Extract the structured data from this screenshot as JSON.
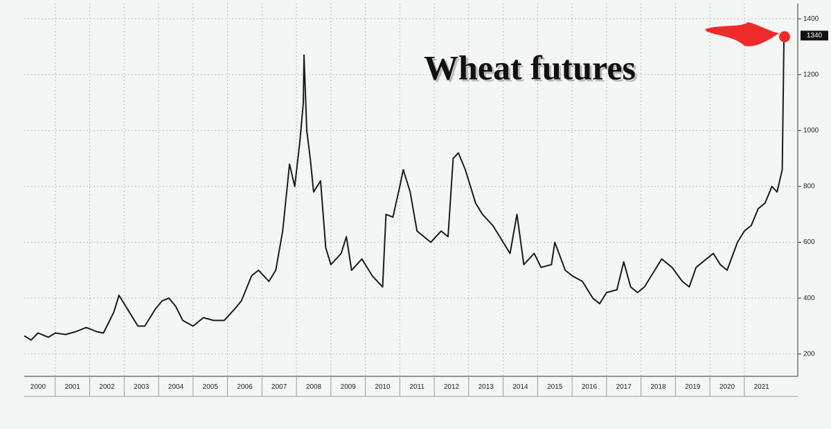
{
  "chart_data": {
    "type": "line",
    "title": "Wheat futures",
    "color": "#1a1a1a",
    "x": [
      2000.1,
      2000.3,
      2000.5,
      2000.8,
      2001.0,
      2001.3,
      2001.6,
      2001.9,
      2002.2,
      2002.4,
      2002.7,
      2002.85,
      2003.1,
      2003.4,
      2003.6,
      2003.9,
      2004.1,
      2004.3,
      2004.5,
      2004.7,
      2005.0,
      2005.3,
      2005.6,
      2005.9,
      2006.2,
      2006.4,
      2006.7,
      2006.9,
      2007.2,
      2007.4,
      2007.6,
      2007.8,
      2007.95,
      2008.1,
      2008.2,
      2008.22,
      2008.3,
      2008.4,
      2008.5,
      2008.7,
      2008.85,
      2009.0,
      2009.3,
      2009.45,
      2009.6,
      2009.9,
      2010.2,
      2010.5,
      2010.6,
      2010.8,
      2011.0,
      2011.1,
      2011.3,
      2011.5,
      2011.7,
      2011.9,
      2012.2,
      2012.4,
      2012.55,
      2012.7,
      2012.9,
      2013.2,
      2013.4,
      2013.7,
      2013.9,
      2014.2,
      2014.4,
      2014.6,
      2014.9,
      2015.1,
      2015.4,
      2015.5,
      2015.8,
      2016.0,
      2016.3,
      2016.6,
      2016.8,
      2017.0,
      2017.3,
      2017.5,
      2017.7,
      2017.9,
      2018.1,
      2018.4,
      2018.6,
      2018.9,
      2019.2,
      2019.4,
      2019.6,
      2019.9,
      2020.1,
      2020.3,
      2020.5,
      2020.8,
      2021.0,
      2021.2,
      2021.4,
      2021.6,
      2021.8,
      2021.95,
      2022.1,
      2022.15
    ],
    "values": [
      265,
      250,
      275,
      260,
      275,
      270,
      280,
      295,
      280,
      275,
      350,
      410,
      360,
      300,
      300,
      360,
      390,
      400,
      370,
      320,
      300,
      330,
      320,
      320,
      360,
      390,
      480,
      500,
      460,
      500,
      640,
      880,
      800,
      960,
      1100,
      1270,
      1000,
      900,
      780,
      820,
      580,
      520,
      560,
      620,
      500,
      540,
      480,
      440,
      700,
      690,
      800,
      860,
      780,
      640,
      620,
      600,
      640,
      620,
      900,
      920,
      860,
      740,
      700,
      660,
      620,
      560,
      700,
      520,
      560,
      510,
      520,
      600,
      500,
      480,
      460,
      400,
      380,
      420,
      430,
      530,
      440,
      420,
      440,
      500,
      540,
      510,
      460,
      440,
      510,
      540,
      560,
      520,
      500,
      600,
      640,
      660,
      720,
      740,
      800,
      780,
      860,
      1340
    ],
    "xlim": [
      2000.1,
      2022.55
    ],
    "xticks": [
      2000,
      2001,
      2002,
      2003,
      2004,
      2005,
      2006,
      2007,
      2008,
      2009,
      2010,
      2011,
      2012,
      2013,
      2014,
      2015,
      2016,
      2017,
      2018,
      2019,
      2020,
      2021
    ],
    "ylim": [
      120,
      1455
    ],
    "yticks": [
      200,
      400,
      600,
      800,
      1000,
      1200,
      1400
    ],
    "grid": true
  }
}
